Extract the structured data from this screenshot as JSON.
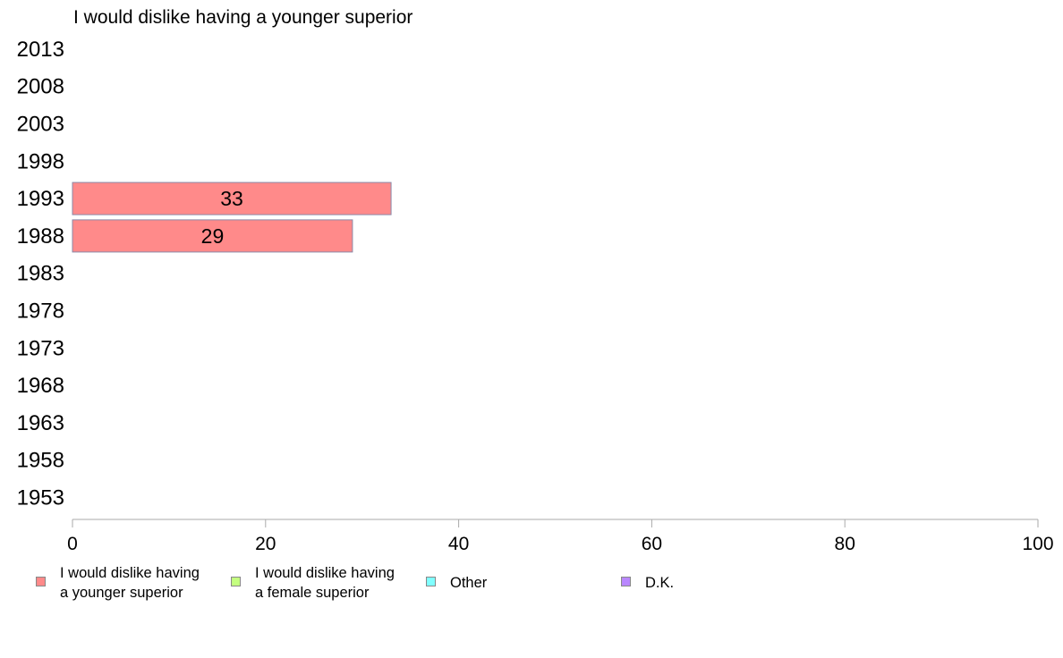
{
  "chart_data": {
    "type": "bar",
    "orientation": "horizontal",
    "title": "I would dislike having a younger superior",
    "categories": [
      "2013",
      "2008",
      "2003",
      "1998",
      "1993",
      "1988",
      "1983",
      "1978",
      "1973",
      "1968",
      "1963",
      "1958",
      "1953"
    ],
    "series": [
      {
        "name": "I would dislike having a younger superior",
        "color": "#ff8a8a",
        "values": [
          null,
          null,
          null,
          null,
          33,
          29,
          null,
          null,
          null,
          null,
          null,
          null,
          null
        ]
      }
    ],
    "xlim": [
      0,
      100
    ],
    "xticks": [
      "0",
      "20",
      "40",
      "60",
      "80",
      "100"
    ],
    "grid": false,
    "legend_position": "bottom"
  },
  "legend": [
    {
      "label": "I would dislike having\na younger superior",
      "color": "#ff8a8a"
    },
    {
      "label": "I would dislike having\na female superior",
      "color": "#c4ff80"
    },
    {
      "label": "Other",
      "color": "#80ffff"
    },
    {
      "label": "D.K.",
      "color": "#b987ff"
    }
  ]
}
